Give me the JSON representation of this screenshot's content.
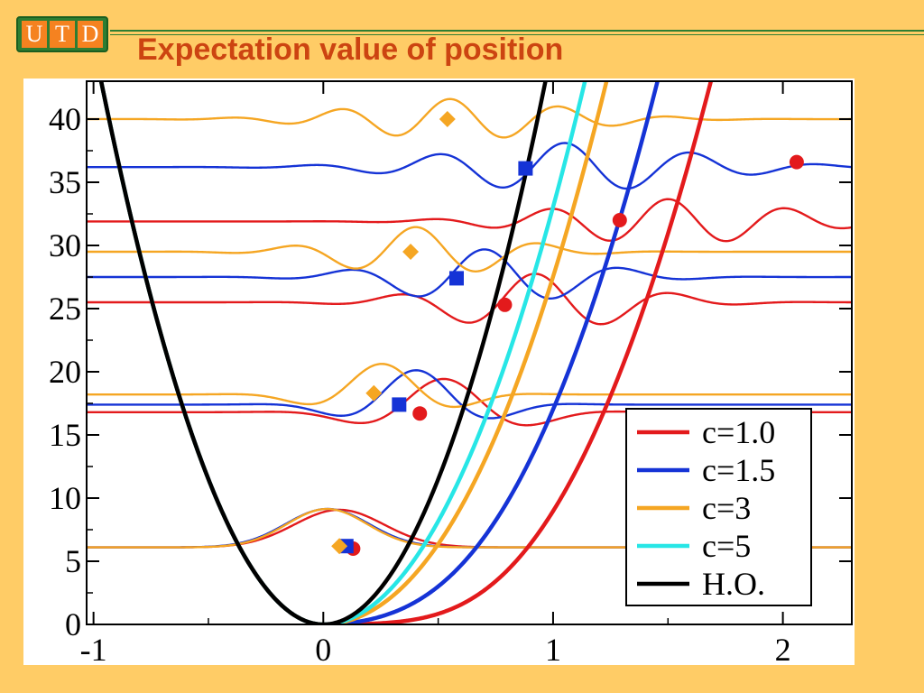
{
  "header": {
    "logo_letters": [
      "U",
      "T",
      "D"
    ],
    "title": "Expectation value of position",
    "accent_color": "#cc4411",
    "logo_color": "#2e7d32"
  },
  "chart_data": {
    "type": "line",
    "title": "",
    "xlabel": "",
    "ylabel": "",
    "xlim": [
      -1.03,
      2.3
    ],
    "ylim": [
      0,
      43
    ],
    "x_ticks": [
      -1,
      0,
      1,
      2
    ],
    "x_tick_labels": [
      "-1",
      "0",
      "1",
      "2"
    ],
    "y_ticks": [
      0,
      5,
      10,
      15,
      20,
      25,
      30,
      35,
      40
    ],
    "y_tick_labels": [
      "0",
      "5",
      "10",
      "15",
      "20",
      "25",
      "30",
      "35",
      "40"
    ],
    "grid": false,
    "legend_position": "bottom-right",
    "series": [
      {
        "name": "c=1.0",
        "color": "#e31a1c",
        "potential_shift": 0.5,
        "potential_width": 0.95,
        "levels": [
          {
            "E": 6.1,
            "amp": 4.0,
            "center": 0.05,
            "width": 0.28,
            "osc": 0
          },
          {
            "E": 16.8,
            "amp": 3.0,
            "center": 0.52,
            "width": 0.4,
            "osc": 1
          },
          {
            "E": 25.5,
            "amp": 2.4,
            "center": 0.92,
            "width": 0.55,
            "osc": 2
          },
          {
            "E": 31.9,
            "amp": 1.8,
            "center": 1.5,
            "width": 0.7,
            "osc": 3
          }
        ],
        "expectation_points": [
          {
            "x": 0.13,
            "y": 6.0
          },
          {
            "x": 0.42,
            "y": 16.7
          },
          {
            "x": 0.79,
            "y": 25.3
          },
          {
            "x": 1.29,
            "y": 32.0
          },
          {
            "x": 2.06,
            "y": 36.6
          }
        ],
        "marker": "circle"
      },
      {
        "name": "c=1.5",
        "color": "#1533d6",
        "potential_shift": 0.3,
        "potential_width": 0.85,
        "levels": [
          {
            "E": 6.1,
            "amp": 4.2,
            "center": 0.0,
            "width": 0.26,
            "osc": 0
          },
          {
            "E": 17.4,
            "amp": 3.2,
            "center": 0.4,
            "width": 0.36,
            "osc": 1
          },
          {
            "E": 27.5,
            "amp": 2.4,
            "center": 0.7,
            "width": 0.55,
            "osc": 2
          },
          {
            "E": 36.2,
            "amp": 2.0,
            "center": 1.05,
            "width": 0.75,
            "osc": 3
          }
        ],
        "expectation_points": [
          {
            "x": 0.1,
            "y": 6.2
          },
          {
            "x": 0.33,
            "y": 17.4
          },
          {
            "x": 0.58,
            "y": 27.4
          },
          {
            "x": 0.88,
            "y": 36.1
          }
        ],
        "marker": "square"
      },
      {
        "name": "c=3",
        "color": "#f5a623",
        "potential_shift": 0.12,
        "potential_width": 0.7,
        "levels": [
          {
            "E": 6.1,
            "amp": 4.2,
            "center": 0.0,
            "width": 0.25,
            "osc": 0
          },
          {
            "E": 18.2,
            "amp": 3.0,
            "center": 0.25,
            "width": 0.35,
            "osc": 1
          },
          {
            "E": 29.5,
            "amp": 2.3,
            "center": 0.4,
            "width": 0.5,
            "osc": 2
          },
          {
            "E": 40.0,
            "amp": 1.8,
            "center": 0.55,
            "width": 0.65,
            "osc": 3
          }
        ],
        "expectation_points": [
          {
            "x": 0.07,
            "y": 6.2
          },
          {
            "x": 0.22,
            "y": 18.3
          },
          {
            "x": 0.38,
            "y": 29.5
          },
          {
            "x": 0.54,
            "y": 40.0
          }
        ],
        "marker": "diamond"
      },
      {
        "name": "c=5",
        "color": "#27e6e6",
        "potential_shift": 0.05,
        "potential_width": 0.6,
        "levels": [],
        "expectation_points": [],
        "marker": "none"
      },
      {
        "name": "H.O.",
        "color": "#000000",
        "potential_shift": 0,
        "potential_width": 0,
        "levels": [],
        "expectation_points": [],
        "marker": "none"
      }
    ]
  }
}
